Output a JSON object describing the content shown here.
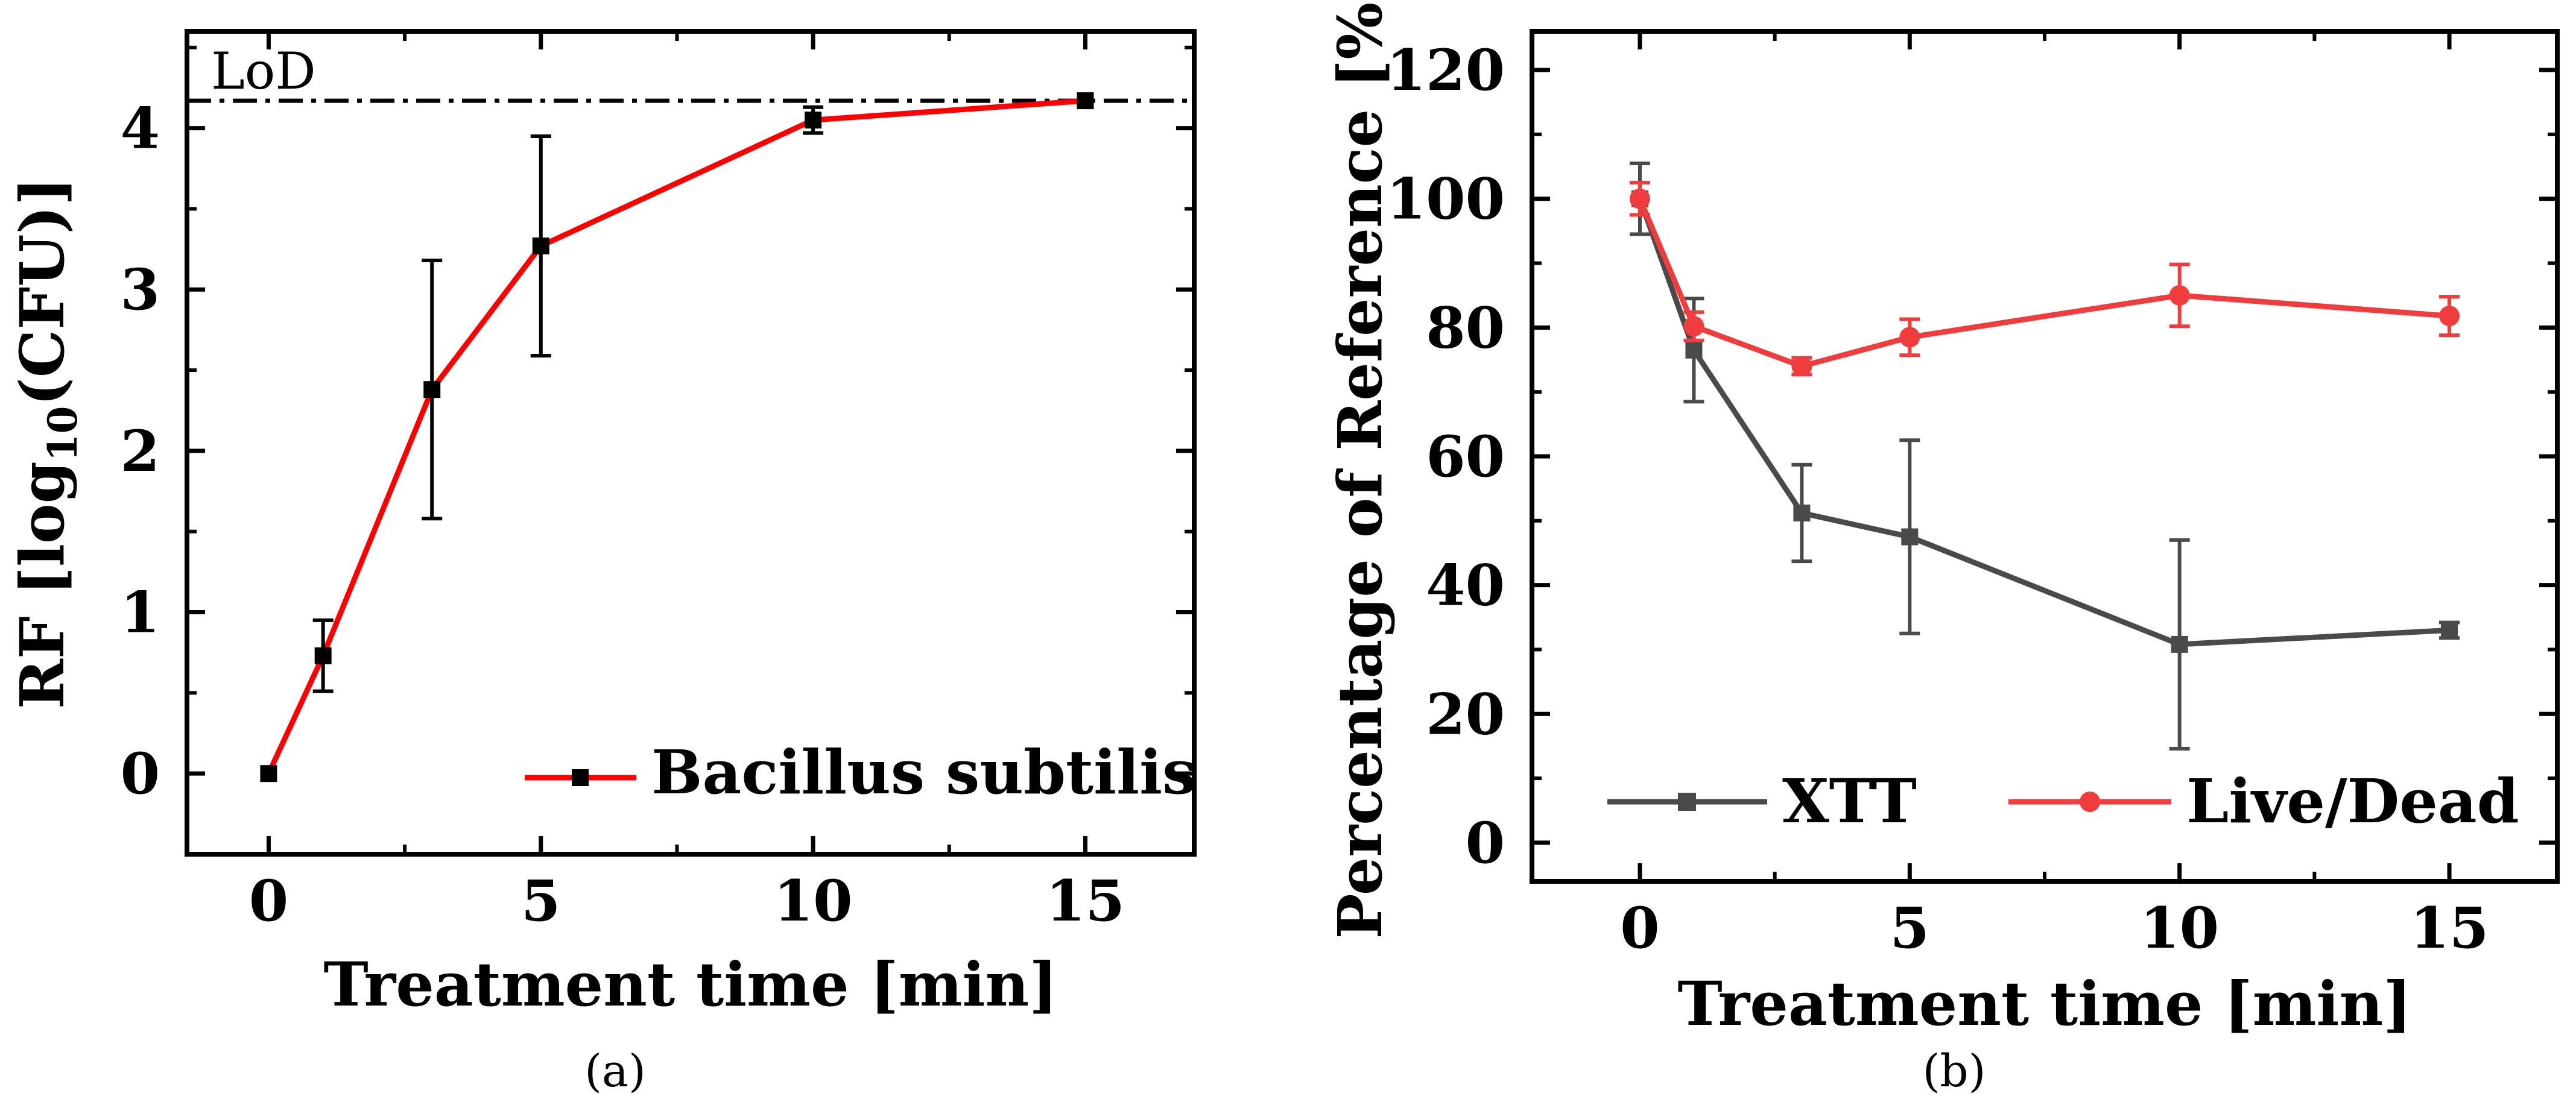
{
  "chart_data": [
    {
      "panel": "a",
      "type": "line",
      "caption": "(a)",
      "xlabel": "Treatment time [min]",
      "ylabel": {
        "prefix": "RF [log",
        "subscript": "10",
        "suffix": "(CFU)]"
      },
      "xlim": [
        -1.5,
        17
      ],
      "ylim": [
        -0.5,
        4.6
      ],
      "xticks": [
        0,
        5,
        10,
        15
      ],
      "yticks": [
        0,
        1,
        2,
        3,
        4
      ],
      "minor_xticks": [
        2.5,
        7.5,
        12.5
      ],
      "minor_yticks": [
        0.5,
        1.5,
        2.5,
        3.5,
        4.5
      ],
      "reference_line": {
        "label": "LoD",
        "y": 4.17,
        "style": "dash-dot"
      },
      "legend_position": "bottom-right",
      "series": [
        {
          "name": "Bacillus subtilis",
          "marker": "square",
          "color": "#ff0000",
          "marker_color": "#000000",
          "x": [
            0,
            1,
            3,
            5,
            10,
            15
          ],
          "y": [
            0,
            0.73,
            2.38,
            3.27,
            4.05,
            4.17
          ],
          "err": [
            0,
            0.22,
            0.8,
            0.68,
            0.08,
            0
          ]
        }
      ]
    },
    {
      "panel": "b",
      "type": "line",
      "caption": "(b)",
      "xlabel": "Treatment time [min]",
      "ylabel": "Percentage of Reference [%]",
      "xlim": [
        -2,
        17
      ],
      "ylim": [
        -6,
        126
      ],
      "xticks": [
        0,
        5,
        10,
        15
      ],
      "yticks": [
        0,
        20,
        40,
        60,
        80,
        100,
        120
      ],
      "minor_xticks": [
        2.5,
        7.5,
        12.5
      ],
      "minor_yticks": [
        10,
        30,
        50,
        70,
        90,
        110
      ],
      "legend_position": "bottom",
      "series": [
        {
          "name": "XTT",
          "marker": "square",
          "color": "#4a4a4a",
          "x": [
            0,
            1,
            3,
            5,
            10,
            15
          ],
          "y": [
            100,
            76.5,
            51.2,
            47.5,
            30.8,
            33
          ],
          "err": [
            5.5,
            8,
            7.5,
            15,
            16.2,
            1.2
          ]
        },
        {
          "name": "Live/Dead",
          "marker": "circle",
          "color": "#f03c3c",
          "x": [
            0,
            1,
            3,
            5,
            10,
            15
          ],
          "y": [
            100,
            80.2,
            74,
            78.5,
            85,
            81.8
          ],
          "err": [
            2.5,
            2.2,
            1.3,
            2.8,
            4.8,
            3
          ]
        }
      ]
    }
  ]
}
